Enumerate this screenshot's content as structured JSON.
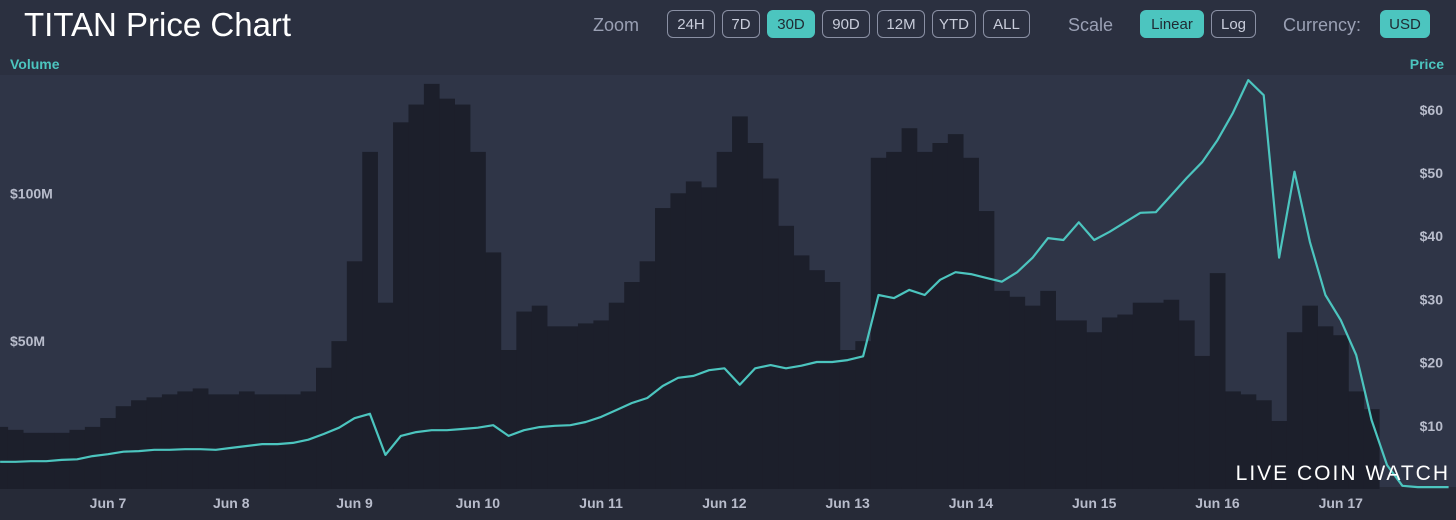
{
  "chart_data": {
    "type": "bar-line",
    "title": "TITAN Price Chart",
    "controls": {
      "zoom": {
        "label": "Zoom",
        "options": [
          "24H",
          "7D",
          "30D",
          "90D",
          "12M",
          "YTD",
          "ALL"
        ],
        "selected": 2
      },
      "scale": {
        "label": "Scale",
        "options": [
          "Linear",
          "Log"
        ],
        "selected": 0
      },
      "currency": {
        "label": "Currency:",
        "options": [
          "USD"
        ],
        "selected": 0
      }
    },
    "watermark": "LIVE COIN WATCH",
    "ylabel": "Volume",
    "y2label": "Price",
    "categories": [
      null,
      null,
      null,
      null,
      null,
      null,
      null,
      "Jun 7",
      null,
      null,
      null,
      null,
      null,
      null,
      null,
      "Jun 8",
      null,
      null,
      null,
      null,
      null,
      null,
      null,
      "Jun 9",
      null,
      null,
      null,
      null,
      null,
      null,
      null,
      "Jun 10",
      null,
      null,
      null,
      null,
      null,
      null,
      null,
      "Jun 11",
      null,
      null,
      null,
      null,
      null,
      null,
      null,
      "Jun 12",
      null,
      null,
      null,
      null,
      null,
      null,
      null,
      "Jun 13",
      null,
      null,
      null,
      null,
      null,
      null,
      null,
      "Jun 14",
      null,
      null,
      null,
      null,
      null,
      null,
      null,
      "Jun 15",
      null,
      null,
      null,
      null,
      null,
      null,
      null,
      "Jun 16",
      null,
      null,
      null,
      null,
      null,
      null,
      null,
      "Jun 17",
      null,
      null,
      null,
      null,
      null,
      null,
      null
    ],
    "series": [
      {
        "name": "Volume",
        "color": "#1c1f2b",
        "axis": "y",
        "values": [
          21000000,
          20000000,
          19000000,
          19000000,
          19000000,
          20000000,
          21000000,
          24000000,
          28000000,
          30000000,
          31000000,
          32000000,
          33000000,
          34000000,
          32000000,
          32000000,
          33000000,
          32000000,
          32000000,
          32000000,
          33000000,
          41000000,
          50000000,
          77000000,
          114000000,
          63000000,
          124000000,
          130000000,
          137000000,
          132000000,
          130000000,
          114000000,
          80000000,
          47000000,
          60000000,
          62000000,
          55000000,
          55000000,
          56000000,
          57000000,
          63000000,
          70000000,
          77000000,
          95000000,
          100000000,
          104000000,
          102000000,
          114000000,
          126000000,
          117000000,
          105000000,
          89000000,
          79000000,
          74000000,
          70000000,
          47000000,
          50000000,
          112000000,
          114000000,
          122000000,
          114000000,
          117000000,
          120000000,
          112000000,
          94000000,
          67000000,
          65000000,
          62000000,
          67000000,
          57000000,
          57000000,
          53000000,
          58000000,
          59000000,
          63000000,
          63000000,
          64000000,
          57000000,
          45000000,
          73000000,
          33000000,
          32000000,
          30000000,
          23000000,
          53000000,
          62000000,
          55000000,
          52000000,
          33000000,
          27000000,
          null,
          null,
          null,
          null,
          null
        ]
      },
      {
        "name": "Price",
        "color": "#4cc5bf",
        "axis": "y2",
        "values": [
          4.3,
          4.3,
          4.4,
          4.4,
          4.6,
          4.7,
          5.2,
          5.5,
          5.9,
          6.0,
          6.2,
          6.2,
          6.3,
          6.3,
          6.2,
          6.5,
          6.8,
          7.1,
          7.1,
          7.3,
          7.8,
          8.7,
          9.7,
          11.2,
          11.9,
          5.4,
          8.4,
          9.0,
          9.3,
          9.3,
          9.5,
          9.7,
          10.1,
          8.4,
          9.3,
          9.8,
          10.0,
          10.1,
          10.6,
          11.4,
          12.5,
          13.6,
          14.4,
          16.3,
          17.6,
          17.9,
          18.8,
          19.1,
          16.5,
          19.1,
          19.6,
          19.1,
          19.5,
          20.1,
          20.1,
          20.4,
          21.0,
          30.7,
          30.2,
          31.5,
          30.7,
          33.1,
          34.3,
          34.0,
          33.4,
          32.8,
          34.3,
          36.6,
          39.7,
          39.4,
          42.2,
          39.4,
          40.7,
          42.2,
          43.7,
          43.8,
          46.5,
          49.2,
          51.7,
          55.2,
          59.5,
          64.7,
          62.3,
          36.6,
          50.2,
          39.1,
          30.7,
          26.7,
          21.2,
          10.9,
          3.8,
          0.5,
          0.3,
          0.3,
          0.3
        ]
      }
    ],
    "ylim": [
      0,
      140000000
    ],
    "yticks": [
      {
        "value": 50000000,
        "label": "$50M"
      },
      {
        "value": 100000000,
        "label": "$100M"
      }
    ],
    "y2lim": [
      0,
      65.5
    ],
    "y2ticks": [
      {
        "value": 10,
        "label": "$10"
      },
      {
        "value": 20,
        "label": "$20"
      },
      {
        "value": 30,
        "label": "$30"
      },
      {
        "value": 40,
        "label": "$40"
      },
      {
        "value": 50,
        "label": "$50"
      },
      {
        "value": 60,
        "label": "$60"
      }
    ],
    "grid": false
  }
}
